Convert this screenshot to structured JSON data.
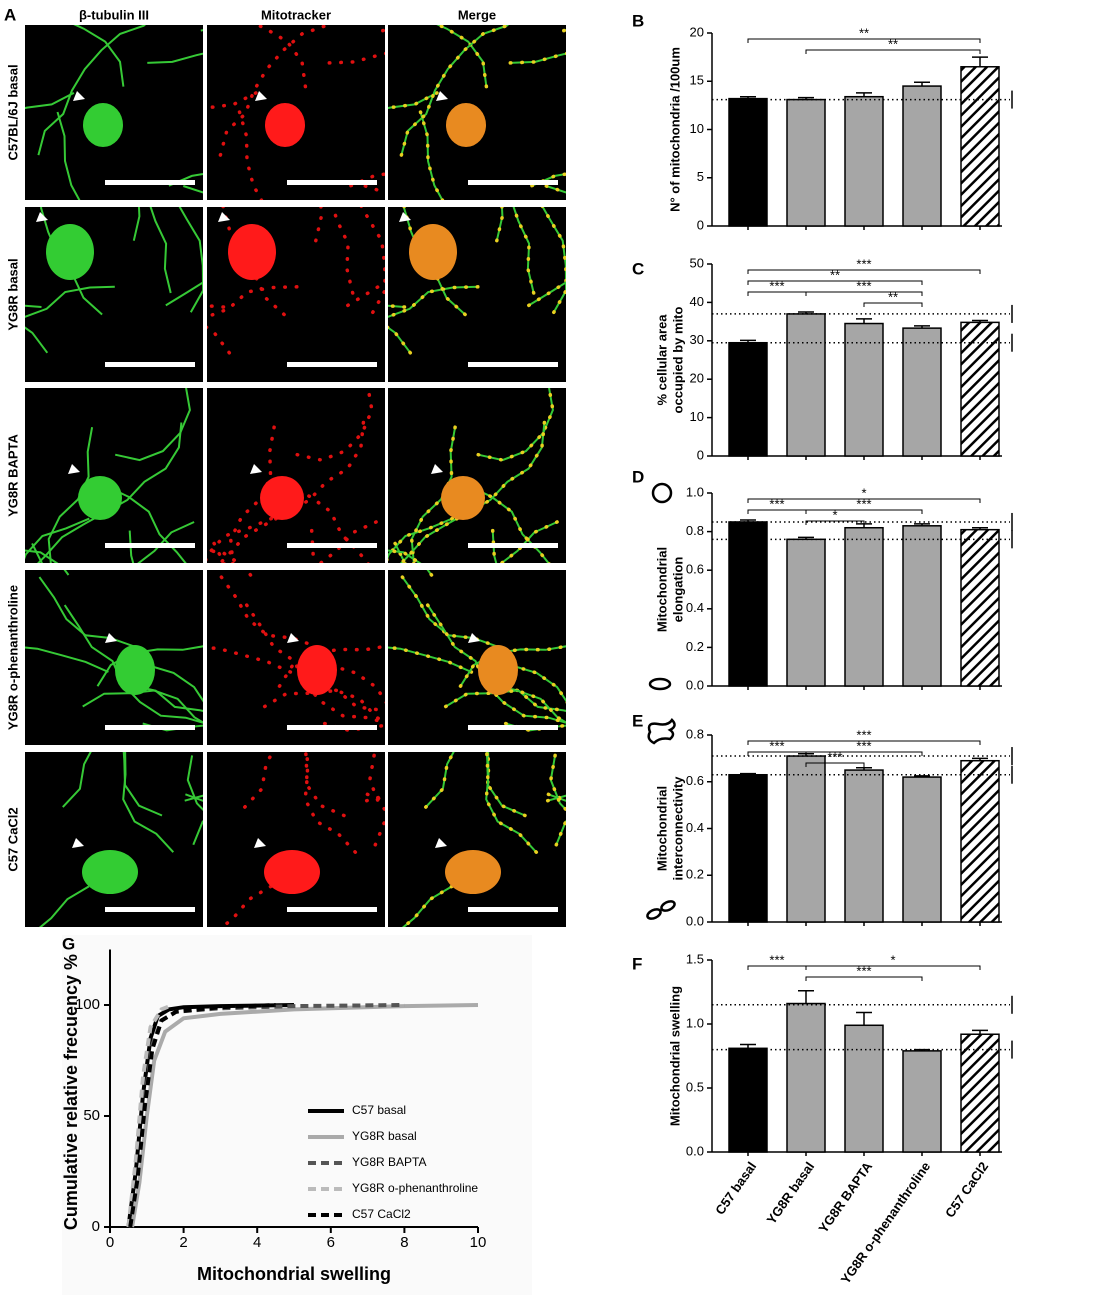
{
  "figure": {
    "panel_a": {
      "label": "A",
      "columns": [
        "β-tubulin III",
        "Mitotracker",
        "Merge"
      ],
      "rows": [
        "C57BL/6J basal",
        "YG8R basal",
        "YG8R BAPTA",
        "YG8R o-phenanthroline",
        "C57 CaCl2"
      ]
    }
  },
  "chart_data": [
    {
      "type": "bar",
      "panel": "B",
      "ylabel": "N° of mitochondria /100um",
      "values": [
        13.2,
        13.1,
        13.4,
        14.5,
        16.5
      ],
      "errors": [
        0.2,
        0.2,
        0.4,
        0.4,
        1.0
      ],
      "bar_fills": [
        "#000000",
        "#a6a6a6",
        "#a6a6a6",
        "#a6a6a6",
        "hatch"
      ],
      "ylim": [
        0,
        20
      ],
      "yticks": [
        0,
        5,
        10,
        15,
        20
      ],
      "ref_lines": [
        13.1
      ],
      "brackets": [
        {
          "from": 0,
          "to": 4,
          "label": "**"
        },
        {
          "from": 1,
          "to": 4,
          "label": "**"
        }
      ]
    },
    {
      "type": "bar",
      "panel": "C",
      "ylabel": [
        "% cellular area",
        "occupied by mito"
      ],
      "values": [
        29.5,
        37,
        34.5,
        33.3,
        34.8
      ],
      "errors": [
        0.6,
        0.5,
        1.2,
        0.6,
        0.5
      ],
      "bar_fills": [
        "#000000",
        "#a6a6a6",
        "#a6a6a6",
        "#a6a6a6",
        "hatch"
      ],
      "ylim": [
        0,
        50
      ],
      "yticks": [
        0,
        10,
        20,
        30,
        40,
        50
      ],
      "ref_lines": [
        37,
        29.5
      ],
      "brackets": [
        {
          "from": 0,
          "to": 4,
          "label": "***"
        },
        {
          "from": 0,
          "to": 3,
          "label": "**"
        },
        {
          "from": 1,
          "to": 3,
          "label": "***"
        },
        {
          "from": 0,
          "to": 1,
          "label": "***"
        },
        {
          "from": 2,
          "to": 3,
          "label": "**"
        }
      ]
    },
    {
      "type": "bar",
      "panel": "D",
      "ylabel": [
        "Mitochondrial",
        "elongation"
      ],
      "values": [
        0.85,
        0.76,
        0.82,
        0.83,
        0.81
      ],
      "errors": [
        0.01,
        0.01,
        0.02,
        0.01,
        0.01
      ],
      "bar_fills": [
        "#000000",
        "#a6a6a6",
        "#a6a6a6",
        "#a6a6a6",
        "hatch"
      ],
      "ylim": [
        0,
        1
      ],
      "yticks": [
        {
          "value": 0,
          "label": "0.0"
        },
        0.2,
        0.4,
        0.6,
        0.8,
        {
          "value": 1,
          "label": "1.0"
        }
      ],
      "ref_lines": [
        0.85,
        0.76
      ],
      "brackets": [
        {
          "from": 0,
          "to": 4,
          "label": "*"
        },
        {
          "from": 1,
          "to": 3,
          "label": "***"
        },
        {
          "from": 1,
          "to": 2,
          "label": "*"
        },
        {
          "from": 0,
          "to": 1,
          "label": "***"
        }
      ]
    },
    {
      "type": "bar",
      "panel": "E",
      "ylabel": [
        "Mitochondrial",
        "interconnectivity"
      ],
      "values": [
        0.63,
        0.71,
        0.65,
        0.62,
        0.69
      ],
      "errors": [
        0.005,
        0.01,
        0.01,
        0.005,
        0.01
      ],
      "bar_fills": [
        "#000000",
        "#a6a6a6",
        "#a6a6a6",
        "#a6a6a6",
        "hatch"
      ],
      "ylim": [
        0,
        0.8
      ],
      "yticks": [
        {
          "value": 0,
          "label": "0.0"
        },
        0.2,
        0.4,
        0.6,
        0.8
      ],
      "ref_lines": [
        0.71,
        0.63
      ],
      "brackets": [
        {
          "from": 0,
          "to": 4,
          "label": "***"
        },
        {
          "from": 1,
          "to": 3,
          "label": "***"
        },
        {
          "from": 1,
          "to": 2,
          "label": "***"
        },
        {
          "from": 0,
          "to": 1,
          "label": "***"
        }
      ]
    },
    {
      "type": "bar",
      "panel": "F",
      "ylabel": "Mitochondrial swelling",
      "categories": [
        "C57 basal",
        "YG8R basal",
        "YG8R BAPTA",
        "YG8R o-phenanthroline",
        "C57 CaCl2"
      ],
      "values": [
        0.81,
        1.16,
        0.99,
        0.79,
        0.92
      ],
      "errors": [
        0.03,
        0.1,
        0.1,
        0.01,
        0.03
      ],
      "bar_fills": [
        "#000000",
        "#a6a6a6",
        "#a6a6a6",
        "#a6a6a6",
        "hatch"
      ],
      "ylim": [
        0,
        1.5
      ],
      "yticks": [
        {
          "value": 0,
          "label": "0.0"
        },
        0.5,
        {
          "value": 1,
          "label": "1.0"
        },
        1.5
      ],
      "ref_lines": [
        1.15,
        0.8
      ],
      "brackets": [
        {
          "from": 1,
          "to": 4,
          "label": "*"
        },
        {
          "from": 1,
          "to": 3,
          "label": "***"
        },
        {
          "from": 0,
          "to": 1,
          "label": "***"
        }
      ]
    },
    {
      "type": "line",
      "panel": "G",
      "xlabel": "Mitochondrial swelling",
      "ylabel": "Cumulative relative frecuency %",
      "xlim": [
        0,
        10
      ],
      "xticks": [
        0,
        2,
        4,
        6,
        8,
        10
      ],
      "ylim": [
        0,
        125
      ],
      "yticks": [
        0,
        50,
        100
      ],
      "legend": "lower right",
      "series": [
        {
          "name": "C57 basal",
          "color": "#000000",
          "dash": "solid",
          "x": [
            0.5,
            0.7,
            0.9,
            1.1,
            1.3,
            1.6,
            2,
            3,
            5
          ],
          "values": [
            0,
            25,
            60,
            85,
            95,
            98,
            99,
            99.5,
            100
          ]
        },
        {
          "name": "YG8R basal",
          "color": "#aaaaaa",
          "dash": "solid",
          "x": [
            0.6,
            0.8,
            1,
            1.2,
            1.5,
            2,
            3,
            5,
            8,
            10
          ],
          "values": [
            0,
            20,
            50,
            75,
            88,
            94,
            96,
            98,
            99.5,
            100
          ]
        },
        {
          "name": "YG8R BAPTA",
          "color": "#555555",
          "dash": "dashed",
          "x": [
            0.55,
            0.75,
            0.95,
            1.15,
            1.4,
            1.8,
            3,
            5,
            8
          ],
          "values": [
            0,
            25,
            58,
            82,
            93,
            97,
            98.5,
            99.5,
            100
          ]
        },
        {
          "name": "YG8R o-phenanthroline",
          "color": "#bbbbbb",
          "dash": "dashed",
          "x": [
            0.5,
            0.7,
            0.9,
            1.1,
            1.4,
            1.7
          ],
          "values": [
            0,
            30,
            68,
            90,
            98,
            100
          ]
        },
        {
          "name": "C57 CaCl2",
          "color": "#000000",
          "dash": "dashed",
          "x": [
            0.55,
            0.75,
            0.95,
            1.15,
            1.4,
            1.8,
            3,
            4.5
          ],
          "values": [
            0,
            22,
            55,
            80,
            93,
            97,
            99,
            100
          ]
        }
      ]
    }
  ]
}
